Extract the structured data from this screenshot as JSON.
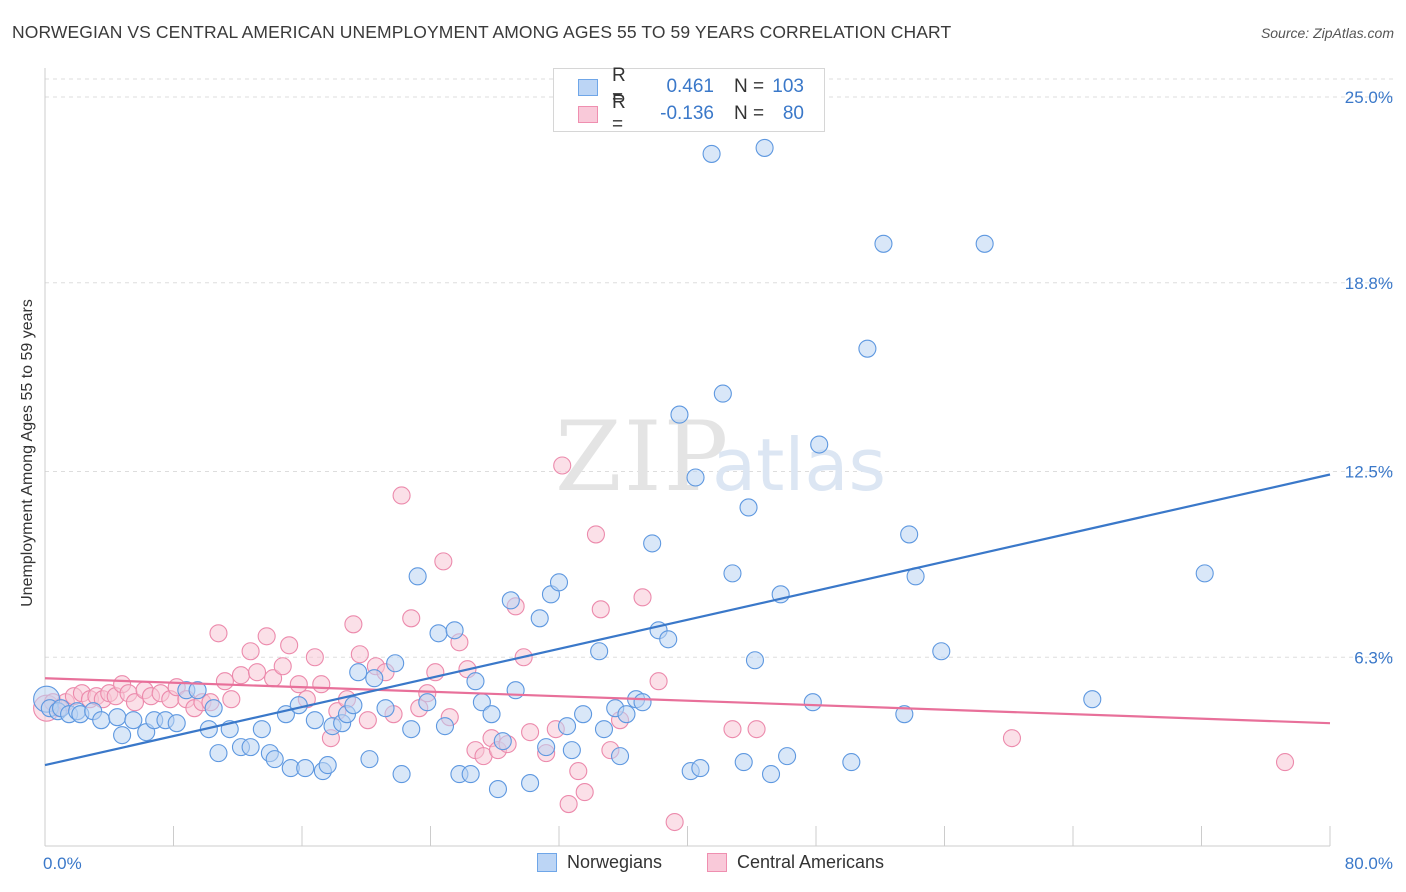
{
  "title": "NORWEGIAN VS CENTRAL AMERICAN UNEMPLOYMENT AMONG AGES 55 TO 59 YEARS CORRELATION CHART",
  "source": "Source: ZipAtlas.com",
  "watermark": {
    "zip": "ZIP",
    "atlas": "atlas"
  },
  "legend": {
    "rows": [
      {
        "r_label": "R =",
        "r_value": "0.461",
        "n_label": "N =",
        "n_value": "103",
        "color": "#6fa6e8",
        "fill": "#bcd5f5"
      },
      {
        "r_label": "R =",
        "r_value": "-0.136",
        "n_label": "N =",
        "n_value": "80",
        "color": "#ef8fb0",
        "fill": "#f9c9d9"
      }
    ]
  },
  "bottom_legend": {
    "norwegians": "Norwegians",
    "central_americans": "Central Americans"
  },
  "colors": {
    "blue": "#3a78c9",
    "blue_fill": "#b9d3f3",
    "pink": "#e8709a",
    "pink_fill": "#f8c6d6",
    "axis_text": "#3a78c9",
    "grid": "#dddddd"
  },
  "chart_data": {
    "type": "scatter",
    "title": "NORWEGIAN VS CENTRAL AMERICAN UNEMPLOYMENT AMONG AGES 55 TO 59 YEARS CORRELATION CHART",
    "xlabel": "",
    "ylabel": "Unemployment Among Ages 55 to 59 years",
    "xlim": [
      0,
      80
    ],
    "ylim": [
      0,
      25
    ],
    "x_tick_labels": [
      "0.0%",
      "80.0%"
    ],
    "y_ticks": [
      6.3,
      12.5,
      18.8,
      25.0
    ],
    "y_tick_labels": [
      "6.3%",
      "12.5%",
      "18.8%",
      "25.0%"
    ],
    "grid": true,
    "series": [
      {
        "name": "Norwegians",
        "trend": {
          "x": [
            0,
            80
          ],
          "y": [
            2.7,
            12.4
          ]
        },
        "points": [
          [
            0.1,
            4.9
          ],
          [
            0.3,
            4.6
          ],
          [
            0.8,
            4.5
          ],
          [
            1.0,
            4.6
          ],
          [
            1.5,
            4.4
          ],
          [
            2.0,
            4.5
          ],
          [
            2.2,
            4.4
          ],
          [
            3.0,
            4.5
          ],
          [
            3.5,
            4.2
          ],
          [
            4.5,
            4.3
          ],
          [
            4.8,
            3.7
          ],
          [
            5.5,
            4.2
          ],
          [
            6.3,
            3.8
          ],
          [
            6.8,
            4.2
          ],
          [
            7.5,
            4.2
          ],
          [
            8.2,
            4.1
          ],
          [
            8.8,
            5.2
          ],
          [
            9.5,
            5.2
          ],
          [
            10.2,
            3.9
          ],
          [
            10.5,
            4.6
          ],
          [
            10.8,
            3.1
          ],
          [
            11.5,
            3.9
          ],
          [
            12.2,
            3.3
          ],
          [
            12.8,
            3.3
          ],
          [
            13.5,
            3.9
          ],
          [
            14.0,
            3.1
          ],
          [
            14.3,
            2.9
          ],
          [
            15.0,
            4.4
          ],
          [
            15.3,
            2.6
          ],
          [
            15.8,
            4.7
          ],
          [
            16.2,
            2.6
          ],
          [
            16.8,
            4.2
          ],
          [
            17.3,
            2.5
          ],
          [
            17.6,
            2.7
          ],
          [
            17.9,
            4.0
          ],
          [
            18.5,
            4.1
          ],
          [
            18.8,
            4.4
          ],
          [
            19.2,
            4.7
          ],
          [
            19.5,
            5.8
          ],
          [
            20.2,
            2.9
          ],
          [
            20.5,
            5.6
          ],
          [
            21.2,
            4.6
          ],
          [
            21.8,
            6.1
          ],
          [
            22.2,
            2.4
          ],
          [
            22.8,
            3.9
          ],
          [
            23.2,
            9.0
          ],
          [
            23.8,
            4.8
          ],
          [
            24.5,
            7.1
          ],
          [
            24.9,
            4.0
          ],
          [
            25.5,
            7.2
          ],
          [
            25.8,
            2.4
          ],
          [
            26.5,
            2.4
          ],
          [
            26.8,
            5.5
          ],
          [
            27.2,
            4.8
          ],
          [
            27.8,
            4.4
          ],
          [
            28.2,
            1.9
          ],
          [
            28.5,
            3.5
          ],
          [
            29.0,
            8.2
          ],
          [
            29.3,
            5.2
          ],
          [
            30.2,
            2.1
          ],
          [
            30.8,
            7.6
          ],
          [
            31.2,
            3.3
          ],
          [
            31.5,
            8.4
          ],
          [
            32.0,
            8.8
          ],
          [
            32.5,
            4.0
          ],
          [
            32.8,
            3.2
          ],
          [
            33.5,
            4.4
          ],
          [
            34.5,
            6.5
          ],
          [
            34.8,
            3.9
          ],
          [
            35.5,
            4.6
          ],
          [
            35.8,
            3.0
          ],
          [
            36.2,
            4.4
          ],
          [
            36.8,
            4.9
          ],
          [
            37.2,
            4.8
          ],
          [
            37.8,
            10.1
          ],
          [
            38.2,
            7.2
          ],
          [
            38.8,
            6.9
          ],
          [
            39.5,
            14.4
          ],
          [
            40.2,
            2.5
          ],
          [
            40.5,
            12.3
          ],
          [
            40.8,
            2.6
          ],
          [
            41.5,
            23.1
          ],
          [
            42.2,
            15.1
          ],
          [
            42.8,
            9.1
          ],
          [
            43.5,
            2.8
          ],
          [
            43.8,
            11.3
          ],
          [
            44.2,
            6.2
          ],
          [
            44.8,
            23.3
          ],
          [
            45.2,
            2.4
          ],
          [
            45.8,
            8.4
          ],
          [
            46.2,
            3.0
          ],
          [
            47.8,
            4.8
          ],
          [
            48.2,
            13.4
          ],
          [
            50.2,
            2.8
          ],
          [
            51.2,
            16.6
          ],
          [
            52.2,
            20.1
          ],
          [
            53.5,
            4.4
          ],
          [
            53.8,
            10.4
          ],
          [
            54.2,
            9.0
          ],
          [
            55.8,
            6.5
          ],
          [
            58.5,
            20.1
          ],
          [
            65.2,
            4.9
          ],
          [
            72.2,
            9.1
          ]
        ]
      },
      {
        "name": "Central Americans",
        "trend": {
          "x": [
            0,
            80
          ],
          "y": [
            5.6,
            4.1
          ]
        },
        "points": [
          [
            0.1,
            4.6
          ],
          [
            0.5,
            4.8
          ],
          [
            0.9,
            4.6
          ],
          [
            1.3,
            4.8
          ],
          [
            1.8,
            5.0
          ],
          [
            2.3,
            5.1
          ],
          [
            2.8,
            4.9
          ],
          [
            3.2,
            5.0
          ],
          [
            3.6,
            4.9
          ],
          [
            4.0,
            5.1
          ],
          [
            4.4,
            5.0
          ],
          [
            4.8,
            5.4
          ],
          [
            5.2,
            5.1
          ],
          [
            5.6,
            4.8
          ],
          [
            6.2,
            5.2
          ],
          [
            6.6,
            5.0
          ],
          [
            7.2,
            5.1
          ],
          [
            7.8,
            4.9
          ],
          [
            8.2,
            5.3
          ],
          [
            8.8,
            4.9
          ],
          [
            9.3,
            4.6
          ],
          [
            9.8,
            4.8
          ],
          [
            10.3,
            4.8
          ],
          [
            10.8,
            7.1
          ],
          [
            11.2,
            5.5
          ],
          [
            11.6,
            4.9
          ],
          [
            12.2,
            5.7
          ],
          [
            12.8,
            6.5
          ],
          [
            13.2,
            5.8
          ],
          [
            13.8,
            7.0
          ],
          [
            14.2,
            5.6
          ],
          [
            14.8,
            6.0
          ],
          [
            15.2,
            6.7
          ],
          [
            15.8,
            5.4
          ],
          [
            16.3,
            4.9
          ],
          [
            16.8,
            6.3
          ],
          [
            17.2,
            5.4
          ],
          [
            17.8,
            3.6
          ],
          [
            18.2,
            4.5
          ],
          [
            18.8,
            4.9
          ],
          [
            19.2,
            7.4
          ],
          [
            19.6,
            6.4
          ],
          [
            20.1,
            4.2
          ],
          [
            20.6,
            6.0
          ],
          [
            21.2,
            5.8
          ],
          [
            21.7,
            4.4
          ],
          [
            22.2,
            11.7
          ],
          [
            22.8,
            7.6
          ],
          [
            23.3,
            4.6
          ],
          [
            23.8,
            5.1
          ],
          [
            24.3,
            5.8
          ],
          [
            24.8,
            9.5
          ],
          [
            25.2,
            4.3
          ],
          [
            25.8,
            6.8
          ],
          [
            26.3,
            5.9
          ],
          [
            26.8,
            3.2
          ],
          [
            27.3,
            3.0
          ],
          [
            27.8,
            3.6
          ],
          [
            28.2,
            3.2
          ],
          [
            28.8,
            3.4
          ],
          [
            29.3,
            8.0
          ],
          [
            29.8,
            6.3
          ],
          [
            30.2,
            3.8
          ],
          [
            31.2,
            3.1
          ],
          [
            31.8,
            3.9
          ],
          [
            32.2,
            12.7
          ],
          [
            32.6,
            1.4
          ],
          [
            33.2,
            2.5
          ],
          [
            33.6,
            1.8
          ],
          [
            34.3,
            10.4
          ],
          [
            34.6,
            7.9
          ],
          [
            35.2,
            3.2
          ],
          [
            35.8,
            4.2
          ],
          [
            37.2,
            8.3
          ],
          [
            38.2,
            5.5
          ],
          [
            39.2,
            0.8
          ],
          [
            42.8,
            3.9
          ],
          [
            44.3,
            3.9
          ],
          [
            60.2,
            3.6
          ],
          [
            77.2,
            2.8
          ]
        ]
      }
    ]
  }
}
